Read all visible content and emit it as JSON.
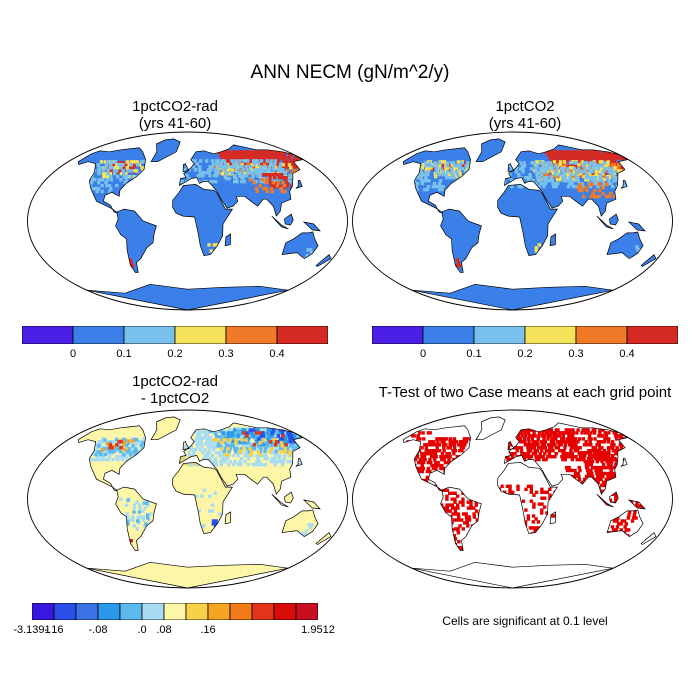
{
  "title": "ANN NECM (gN/m^2/y)",
  "panels": [
    {
      "id": "p1",
      "title_lines": [
        "1pctCO2-rad",
        "(yrs 41-60)"
      ]
    },
    {
      "id": "p2",
      "title_lines": [
        "1pctCO2",
        "(yrs 41-60)"
      ]
    },
    {
      "id": "p3",
      "title_lines": [
        "1pctCO2-rad",
        "- 1pctCO2"
      ]
    },
    {
      "id": "p4",
      "title_lines": [
        "T-Test of two Case means at each grid point"
      ]
    }
  ],
  "colorbar_top": {
    "colors": [
      "#4b1fe6",
      "#3a80e8",
      "#79c1ec",
      "#f4e25a",
      "#f07a28",
      "#d62b24"
    ],
    "labels": [
      "0",
      "0.1",
      "0.2",
      "0.3",
      "0.4"
    ]
  },
  "colorbar_diff": {
    "colors": [
      "#3a17e0",
      "#2a4ee8",
      "#3a73e6",
      "#2b98ec",
      "#5cb9ee",
      "#a8dcf5",
      "#fdf6a6",
      "#f9d04a",
      "#f6a523",
      "#f27a18",
      "#e2341a",
      "#d90b0b",
      "#c80f22"
    ],
    "labels": [
      "-3.1391",
      "-.16",
      "-.08",
      ".0",
      ".08",
      ".16",
      "1.9512"
    ]
  },
  "significance_note": "Cells are significant at 0.1 level",
  "colors": {
    "ocean": "#ffffff",
    "land_base": "#3a80e8",
    "diff_base": "#fdf6a6",
    "significant": "#e60000"
  }
}
